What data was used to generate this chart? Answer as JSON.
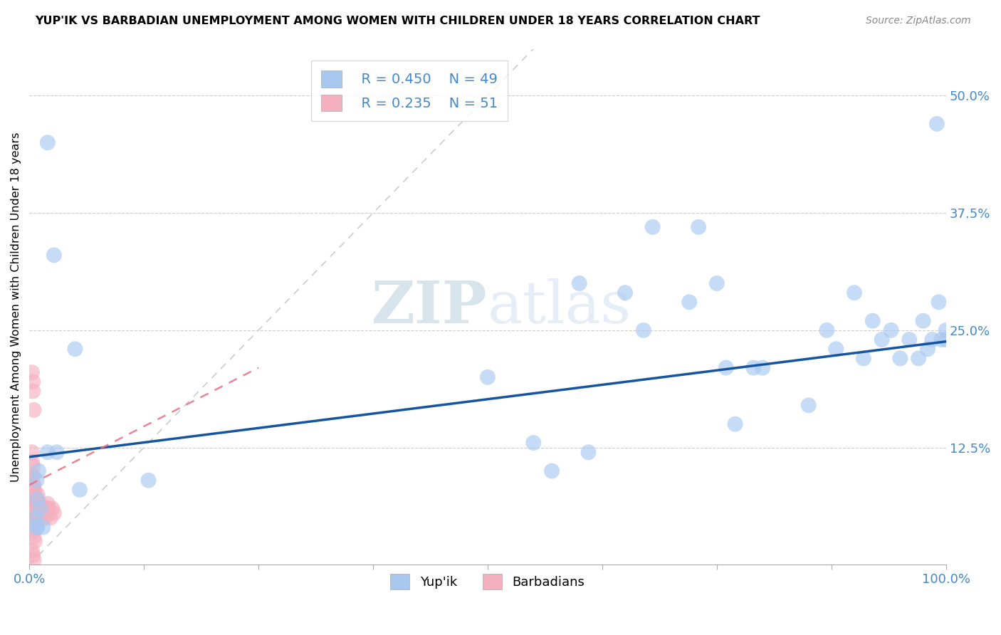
{
  "title": "YUP'IK VS BARBADIAN UNEMPLOYMENT AMONG WOMEN WITH CHILDREN UNDER 18 YEARS CORRELATION CHART",
  "source": "Source: ZipAtlas.com",
  "ylabel": "Unemployment Among Women with Children Under 18 years",
  "xlim": [
    0,
    1.0
  ],
  "ylim": [
    0,
    0.55
  ],
  "xtick_positions": [
    0.0,
    0.125,
    0.25,
    0.375,
    0.5,
    0.625,
    0.75,
    0.875,
    1.0
  ],
  "xticklabels": [
    "0.0%",
    "",
    "",
    "",
    "",
    "",
    "",
    "",
    "100.0%"
  ],
  "ytick_positions": [
    0.125,
    0.25,
    0.375,
    0.5
  ],
  "ytick_labels": [
    "12.5%",
    "25.0%",
    "37.5%",
    "50.0%"
  ],
  "legend_r_blue": "R = 0.450",
  "legend_n_blue": "N = 49",
  "legend_r_pink": "R = 0.235",
  "legend_n_pink": "N = 51",
  "blue_color": "#A8C8F0",
  "pink_color": "#F5B0C0",
  "trendline_blue_color": "#1555A0",
  "trendline_pink_color": "#E87080",
  "grid_color": "#CCCCCC",
  "diagonal_color": "#CCCCCC",
  "watermark_color": "#C8D8EE",
  "tick_color": "#4488CC",
  "yup_x": [
    0.02,
    0.05,
    0.027,
    0.13,
    0.008,
    0.01,
    0.008,
    0.009,
    0.012,
    0.015,
    0.02,
    0.03,
    0.055,
    0.007,
    0.009,
    0.5,
    0.55,
    0.61,
    0.57,
    0.6,
    0.65,
    0.67,
    0.68,
    0.72,
    0.73,
    0.75,
    0.76,
    0.77,
    0.79,
    0.8,
    0.85,
    0.87,
    0.88,
    0.9,
    0.91,
    0.92,
    0.93,
    0.94,
    0.95,
    0.96,
    0.97,
    0.975,
    0.98,
    0.985,
    0.99,
    0.992,
    0.995,
    1.0,
    1.0
  ],
  "yup_y": [
    0.45,
    0.23,
    0.33,
    0.09,
    0.09,
    0.1,
    0.04,
    0.07,
    0.06,
    0.04,
    0.12,
    0.12,
    0.08,
    0.05,
    0.04,
    0.2,
    0.13,
    0.12,
    0.1,
    0.3,
    0.29,
    0.25,
    0.36,
    0.28,
    0.36,
    0.3,
    0.21,
    0.15,
    0.21,
    0.21,
    0.17,
    0.25,
    0.23,
    0.29,
    0.22,
    0.26,
    0.24,
    0.25,
    0.22,
    0.24,
    0.22,
    0.26,
    0.23,
    0.24,
    0.47,
    0.28,
    0.24,
    0.25,
    0.24
  ],
  "barb_x": [
    0.003,
    0.004,
    0.004,
    0.005,
    0.005,
    0.006,
    0.006,
    0.007,
    0.007,
    0.008,
    0.008,
    0.009,
    0.009,
    0.01,
    0.01,
    0.011,
    0.012,
    0.013,
    0.014,
    0.015,
    0.016,
    0.017,
    0.018,
    0.019,
    0.02,
    0.021,
    0.022,
    0.023,
    0.025,
    0.027,
    0.003,
    0.004,
    0.005,
    0.006,
    0.007,
    0.003,
    0.004,
    0.005,
    0.003,
    0.004,
    0.003,
    0.002,
    0.002,
    0.003,
    0.002,
    0.004,
    0.005,
    0.006,
    0.003,
    0.004,
    0.005
  ],
  "barb_y": [
    0.205,
    0.195,
    0.185,
    0.165,
    0.08,
    0.07,
    0.075,
    0.065,
    0.055,
    0.045,
    0.06,
    0.075,
    0.065,
    0.055,
    0.05,
    0.06,
    0.065,
    0.055,
    0.05,
    0.06,
    0.055,
    0.05,
    0.06,
    0.055,
    0.065,
    0.06,
    0.055,
    0.05,
    0.06,
    0.055,
    0.095,
    0.085,
    0.08,
    0.07,
    0.06,
    0.11,
    0.095,
    0.085,
    0.12,
    0.105,
    0.075,
    0.095,
    0.06,
    0.05,
    0.04,
    0.035,
    0.03,
    0.025,
    0.015,
    0.01,
    0.005
  ],
  "blue_trendline_x0": 0.0,
  "blue_trendline_x1": 1.0,
  "blue_trendline_y0": 0.115,
  "blue_trendline_y1": 0.238,
  "pink_trendline_x0": 0.0,
  "pink_trendline_x1": 0.25,
  "pink_trendline_y0": 0.085,
  "pink_trendline_y1": 0.21
}
